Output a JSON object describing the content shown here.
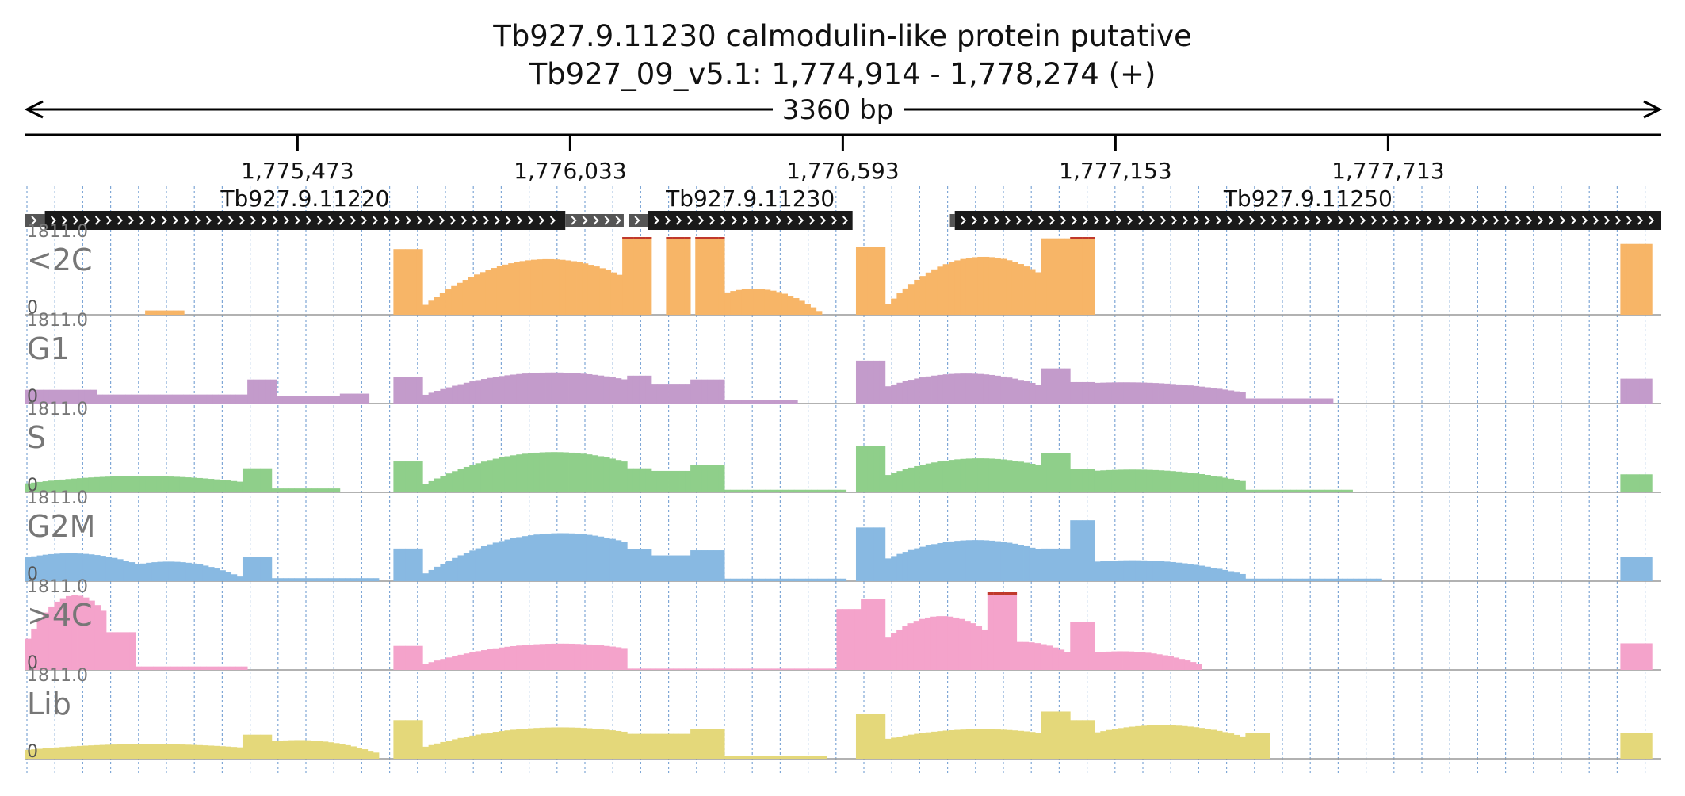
{
  "title": {
    "line1": "Tb927.9.11230  calmodulin-like protein  putative",
    "line2": "Tb927_09_v5.1: 1,774,914 - 1,778,274 (+)"
  },
  "span_label": "3360 bp",
  "colors": {
    "gene_fill": "#1a1a1a",
    "utr_fill": "#555555",
    "axis": "#000000",
    "grid": "#7fa7d6",
    "overflow": "#c0392b"
  },
  "chart_data": {
    "type": "bar",
    "genomic_range": [
      1774914,
      1778274
    ],
    "ticks": [
      {
        "pos": 1775473,
        "label": "1,775,473"
      },
      {
        "pos": 1776033,
        "label": "1,776,033"
      },
      {
        "pos": 1776593,
        "label": "1,776,593"
      },
      {
        "pos": 1777153,
        "label": "1,777,153"
      },
      {
        "pos": 1777713,
        "label": "1,777,713"
      }
    ],
    "genes": [
      {
        "name": "Tb927.9.11220",
        "utr5": [
          1774914,
          1774954
        ],
        "cds": [
          1774954,
          1776023
        ],
        "utr3": [
          1776023,
          1776143
        ]
      },
      {
        "name": "Tb927.9.11230",
        "utr5": [
          1776153,
          1776193
        ],
        "cds": [
          1776193,
          1776613
        ],
        "utr3": null
      },
      {
        "name": "Tb927.9.11250",
        "utr5": [
          1776813,
          1776823
        ],
        "cds": [
          1776823,
          1778274
        ],
        "utr3": null
      }
    ],
    "tracks": [
      {
        "name": "<2C",
        "max_label": "1811.0",
        "min_label": "0",
        "color": "#f7b567",
        "segments": [
          {
            "start": 1775160,
            "end": 1775240,
            "shape": "flat",
            "v": 100
          },
          {
            "start": 1775670,
            "end": 1775730,
            "shape": "flat",
            "v": 1530
          },
          {
            "start": 1775730,
            "end": 1776140,
            "shape": "curve",
            "v0": 180,
            "v1": 900,
            "peak": 1250
          },
          {
            "start": 1776140,
            "end": 1776200,
            "shape": "flat",
            "v": 1811
          },
          {
            "start": 1776230,
            "end": 1776280,
            "shape": "flat",
            "v": 1811
          },
          {
            "start": 1776290,
            "end": 1776350,
            "shape": "flat",
            "v": 1811
          },
          {
            "start": 1776350,
            "end": 1776550,
            "shape": "curve",
            "v0": 500,
            "v1": 40,
            "peak": 560
          },
          {
            "start": 1776620,
            "end": 1776680,
            "shape": "flat",
            "v": 1580
          },
          {
            "start": 1776680,
            "end": 1777000,
            "shape": "curve",
            "v0": 180,
            "v1": 950,
            "peak": 1300
          },
          {
            "start": 1777000,
            "end": 1777060,
            "shape": "flat",
            "v": 1780
          },
          {
            "start": 1777060,
            "end": 1777110,
            "shape": "flat",
            "v": 1811
          },
          {
            "start": 1778190,
            "end": 1778255,
            "shape": "flat",
            "v": 1650
          }
        ]
      },
      {
        "name": "G1",
        "max_label": "1811.0",
        "min_label": "0",
        "color": "#c39bcb",
        "segments": [
          {
            "start": 1774914,
            "end": 1775060,
            "shape": "flat",
            "v": 320
          },
          {
            "start": 1775060,
            "end": 1775370,
            "shape": "flat",
            "v": 210
          },
          {
            "start": 1775370,
            "end": 1775430,
            "shape": "flat",
            "v": 560
          },
          {
            "start": 1775430,
            "end": 1775560,
            "shape": "flat",
            "v": 180
          },
          {
            "start": 1775560,
            "end": 1775620,
            "shape": "flat",
            "v": 230
          },
          {
            "start": 1775670,
            "end": 1775730,
            "shape": "flat",
            "v": 620
          },
          {
            "start": 1775730,
            "end": 1776150,
            "shape": "curve",
            "v0": 180,
            "v1": 550,
            "peak": 700
          },
          {
            "start": 1776150,
            "end": 1776200,
            "shape": "flat",
            "v": 650
          },
          {
            "start": 1776200,
            "end": 1776280,
            "shape": "flat",
            "v": 460
          },
          {
            "start": 1776280,
            "end": 1776350,
            "shape": "flat",
            "v": 560
          },
          {
            "start": 1776350,
            "end": 1776500,
            "shape": "flat",
            "v": 90
          },
          {
            "start": 1776620,
            "end": 1776680,
            "shape": "flat",
            "v": 1000
          },
          {
            "start": 1776680,
            "end": 1777000,
            "shape": "curve",
            "v0": 380,
            "v1": 420,
            "peak": 700
          },
          {
            "start": 1777000,
            "end": 1777060,
            "shape": "flat",
            "v": 820
          },
          {
            "start": 1777060,
            "end": 1777110,
            "shape": "flat",
            "v": 500
          },
          {
            "start": 1777110,
            "end": 1777420,
            "shape": "curve",
            "v0": 480,
            "v1": 250,
            "peak": 460
          },
          {
            "start": 1777420,
            "end": 1777600,
            "shape": "flat",
            "v": 120
          },
          {
            "start": 1778190,
            "end": 1778255,
            "shape": "flat",
            "v": 580
          }
        ]
      },
      {
        "name": "S",
        "max_label": "1811.0",
        "min_label": "0",
        "color": "#8fcf8a",
        "segments": [
          {
            "start": 1774914,
            "end": 1775360,
            "shape": "curve",
            "v0": 200,
            "v1": 240,
            "peak": 380
          },
          {
            "start": 1775360,
            "end": 1775420,
            "shape": "flat",
            "v": 560
          },
          {
            "start": 1775420,
            "end": 1775560,
            "shape": "flat",
            "v": 90
          },
          {
            "start": 1775670,
            "end": 1775730,
            "shape": "flat",
            "v": 720
          },
          {
            "start": 1775730,
            "end": 1776150,
            "shape": "curve",
            "v0": 160,
            "v1": 700,
            "peak": 900
          },
          {
            "start": 1776150,
            "end": 1776200,
            "shape": "flat",
            "v": 560
          },
          {
            "start": 1776200,
            "end": 1776280,
            "shape": "flat",
            "v": 500
          },
          {
            "start": 1776280,
            "end": 1776350,
            "shape": "flat",
            "v": 640
          },
          {
            "start": 1776350,
            "end": 1776600,
            "shape": "flat",
            "v": 60
          },
          {
            "start": 1776620,
            "end": 1776680,
            "shape": "flat",
            "v": 1080
          },
          {
            "start": 1776680,
            "end": 1777000,
            "shape": "curve",
            "v0": 380,
            "v1": 620,
            "peak": 780
          },
          {
            "start": 1777000,
            "end": 1777060,
            "shape": "flat",
            "v": 920
          },
          {
            "start": 1777060,
            "end": 1777110,
            "shape": "flat",
            "v": 540
          },
          {
            "start": 1777110,
            "end": 1777420,
            "shape": "curve",
            "v0": 500,
            "v1": 250,
            "peak": 500
          },
          {
            "start": 1777420,
            "end": 1777640,
            "shape": "flat",
            "v": 60
          },
          {
            "start": 1778190,
            "end": 1778255,
            "shape": "flat",
            "v": 420
          }
        ]
      },
      {
        "name": "G2M",
        "max_label": "1811.0",
        "min_label": "0",
        "color": "#88b9e2",
        "segments": [
          {
            "start": 1774914,
            "end": 1775150,
            "shape": "curve",
            "v0": 540,
            "v1": 380,
            "peak": 640
          },
          {
            "start": 1775150,
            "end": 1775360,
            "shape": "curve",
            "v0": 400,
            "v1": 80,
            "peak": 420
          },
          {
            "start": 1775360,
            "end": 1775420,
            "shape": "flat",
            "v": 560
          },
          {
            "start": 1775420,
            "end": 1775640,
            "shape": "flat",
            "v": 70
          },
          {
            "start": 1775670,
            "end": 1775730,
            "shape": "flat",
            "v": 760
          },
          {
            "start": 1775730,
            "end": 1776150,
            "shape": "curve",
            "v0": 140,
            "v1": 900,
            "peak": 1050
          },
          {
            "start": 1776150,
            "end": 1776200,
            "shape": "flat",
            "v": 740
          },
          {
            "start": 1776200,
            "end": 1776280,
            "shape": "flat",
            "v": 600
          },
          {
            "start": 1776280,
            "end": 1776350,
            "shape": "flat",
            "v": 720
          },
          {
            "start": 1776350,
            "end": 1776600,
            "shape": "flat",
            "v": 60
          },
          {
            "start": 1776620,
            "end": 1776680,
            "shape": "flat",
            "v": 1250
          },
          {
            "start": 1776680,
            "end": 1777000,
            "shape": "curve",
            "v0": 500,
            "v1": 720,
            "peak": 950
          },
          {
            "start": 1777000,
            "end": 1777060,
            "shape": "flat",
            "v": 760
          },
          {
            "start": 1777060,
            "end": 1777110,
            "shape": "flat",
            "v": 1420
          },
          {
            "start": 1777110,
            "end": 1777420,
            "shape": "curve",
            "v0": 450,
            "v1": 150,
            "peak": 450
          },
          {
            "start": 1777420,
            "end": 1777700,
            "shape": "flat",
            "v": 60
          },
          {
            "start": 1778190,
            "end": 1778255,
            "shape": "flat",
            "v": 560
          }
        ]
      },
      {
        "name": ">4C",
        "max_label": "1811.0",
        "min_label": "0",
        "color": "#f4a3cb",
        "segments": [
          {
            "start": 1774914,
            "end": 1775080,
            "shape": "curve",
            "v0": 600,
            "v1": 1300,
            "peak": 1700
          },
          {
            "start": 1775080,
            "end": 1775140,
            "shape": "flat",
            "v": 880
          },
          {
            "start": 1775140,
            "end": 1775370,
            "shape": "flat",
            "v": 80
          },
          {
            "start": 1775670,
            "end": 1775730,
            "shape": "flat",
            "v": 560
          },
          {
            "start": 1775730,
            "end": 1776150,
            "shape": "curve",
            "v0": 120,
            "v1": 500,
            "peak": 580
          },
          {
            "start": 1776150,
            "end": 1776600,
            "shape": "flat",
            "v": 30
          },
          {
            "start": 1776580,
            "end": 1776630,
            "shape": "flat",
            "v": 1420
          },
          {
            "start": 1776630,
            "end": 1776680,
            "shape": "flat",
            "v": 1650
          },
          {
            "start": 1776680,
            "end": 1776890,
            "shape": "curve",
            "v0": 700,
            "v1": 900,
            "peak": 1250
          },
          {
            "start": 1776890,
            "end": 1776950,
            "shape": "flat",
            "v": 1811
          },
          {
            "start": 1776950,
            "end": 1777060,
            "shape": "curve",
            "v0": 650,
            "v1": 380,
            "peak": 600
          },
          {
            "start": 1777060,
            "end": 1777110,
            "shape": "flat",
            "v": 1120
          },
          {
            "start": 1777110,
            "end": 1777330,
            "shape": "curve",
            "v0": 400,
            "v1": 120,
            "peak": 400
          },
          {
            "start": 1778190,
            "end": 1778255,
            "shape": "flat",
            "v": 620
          }
        ]
      },
      {
        "name": "Lib",
        "max_label": "1811.0",
        "min_label": "0",
        "color": "#e4d87a",
        "segments": [
          {
            "start": 1774914,
            "end": 1775360,
            "shape": "curve",
            "v0": 200,
            "v1": 260,
            "peak": 340
          },
          {
            "start": 1775360,
            "end": 1775420,
            "shape": "flat",
            "v": 560
          },
          {
            "start": 1775420,
            "end": 1775640,
            "shape": "curve",
            "v0": 400,
            "v1": 120,
            "peak": 400
          },
          {
            "start": 1775670,
            "end": 1775730,
            "shape": "flat",
            "v": 900
          },
          {
            "start": 1775730,
            "end": 1776150,
            "shape": "curve",
            "v0": 260,
            "v1": 620,
            "peak": 700
          },
          {
            "start": 1776150,
            "end": 1776280,
            "shape": "flat",
            "v": 580
          },
          {
            "start": 1776280,
            "end": 1776350,
            "shape": "flat",
            "v": 700
          },
          {
            "start": 1776350,
            "end": 1776560,
            "shape": "flat",
            "v": 60
          },
          {
            "start": 1776620,
            "end": 1776680,
            "shape": "flat",
            "v": 1050
          },
          {
            "start": 1776680,
            "end": 1777000,
            "shape": "curve",
            "v0": 450,
            "v1": 600,
            "peak": 680
          },
          {
            "start": 1777000,
            "end": 1777060,
            "shape": "flat",
            "v": 1100
          },
          {
            "start": 1777060,
            "end": 1777110,
            "shape": "flat",
            "v": 900
          },
          {
            "start": 1777110,
            "end": 1777420,
            "shape": "curve",
            "v0": 600,
            "v1": 500,
            "peak": 780
          },
          {
            "start": 1777420,
            "end": 1777470,
            "shape": "flat",
            "v": 600
          },
          {
            "start": 1778190,
            "end": 1778255,
            "shape": "flat",
            "v": 600
          }
        ]
      }
    ]
  }
}
